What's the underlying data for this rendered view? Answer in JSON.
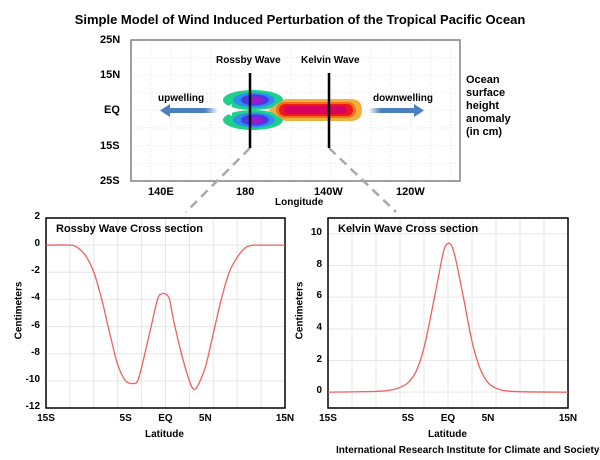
{
  "title": "Simple Model of Wind Induced Perturbation of the Tropical Pacific Ocean",
  "credit": "International Research Institute for Climate and Society",
  "colors": {
    "curve": "#f06060",
    "arrow": "#4a7fc0",
    "grid": "#e6e6e6",
    "rossby_outer": "#1fd08c",
    "rossby_mid": "#2c8cf0",
    "rossby_inner": "#4a3ae0",
    "rossby_core": "#9a1ad0",
    "kelvin_outer": "#f0b040",
    "kelvin_mid": "#f07020",
    "kelvin_inner": "#f01818",
    "kelvin_core": "#d80060"
  },
  "map": {
    "y_ticks": [
      "25N",
      "15N",
      "EQ",
      "15S",
      "25S"
    ],
    "x_ticks": [
      "140E",
      "180",
      "140W",
      "120W"
    ],
    "xlabel": "Longitude",
    "rossby_label": "Rossby Wave",
    "kelvin_label": "Kelvin Wave",
    "upwelling_label": "upwelling",
    "downwelling_label": "downwelling",
    "legend_lines": [
      "Ocean",
      "surface",
      "height",
      "anomaly",
      "(in cm)"
    ]
  },
  "chart_data": [
    {
      "type": "line",
      "title": "Rossby Wave Cross section",
      "xlabel": "Latitude",
      "ylabel": "Centimeters",
      "xlim": [
        -15,
        15
      ],
      "ylim": [
        -12,
        2
      ],
      "x_ticks": [
        -15,
        -5,
        0,
        5,
        15
      ],
      "x_tick_labels": [
        "15S",
        "5S",
        "EQ",
        "5N",
        "15N"
      ],
      "y_ticks": [
        2,
        0,
        -2,
        -4,
        -6,
        -8,
        -10,
        -12
      ],
      "y_tick_labels": [
        "2",
        "0",
        "-2",
        "-4",
        "-6",
        "-8",
        "-10",
        "-12"
      ],
      "grid": true,
      "series": [
        {
          "name": "Rossby",
          "x": [
            -15,
            -12,
            -11,
            -10,
            -9,
            -8,
            -7,
            -6,
            -5,
            -4,
            -3.5,
            -3,
            -2,
            -1,
            -0.5,
            0,
            0.5,
            1,
            2,
            3,
            3.5,
            4,
            5,
            6,
            7,
            8,
            9,
            10,
            11,
            12,
            15
          ],
          "y": [
            0,
            0,
            -0.2,
            -0.8,
            -2,
            -4,
            -6.5,
            -8.8,
            -10,
            -10.2,
            -10,
            -9,
            -6.5,
            -4,
            -3.6,
            -3.6,
            -4,
            -5.5,
            -8,
            -10,
            -10.6,
            -10.4,
            -9,
            -6.5,
            -4,
            -2,
            -0.9,
            -0.2,
            0,
            0,
            0
          ]
        }
      ]
    },
    {
      "type": "line",
      "title": "Kelvin Wave Cross section",
      "xlabel": "Latitude",
      "ylabel": "Centimeters",
      "xlim": [
        -15,
        15
      ],
      "ylim": [
        -1,
        11
      ],
      "x_ticks": [
        -15,
        -5,
        0,
        5,
        15
      ],
      "x_tick_labels": [
        "15S",
        "5S",
        "EQ",
        "5N",
        "15N"
      ],
      "y_ticks": [
        10,
        8,
        6,
        4,
        2,
        0
      ],
      "y_tick_labels": [
        "10",
        "8",
        "6",
        "4",
        "2",
        "0"
      ],
      "grid": true,
      "series": [
        {
          "name": "Kelvin",
          "x": [
            -15,
            -9,
            -7,
            -6,
            -5,
            -4,
            -3,
            -2,
            -1,
            -0.5,
            0,
            0.5,
            1,
            2,
            3,
            4,
            5,
            6,
            7,
            9,
            15
          ],
          "y": [
            0,
            0.05,
            0.15,
            0.3,
            0.6,
            1.3,
            2.8,
            5.2,
            7.8,
            9.0,
            9.4,
            9.2,
            8.3,
            5.8,
            3.2,
            1.5,
            0.6,
            0.25,
            0.1,
            0.03,
            0
          ]
        }
      ]
    }
  ]
}
